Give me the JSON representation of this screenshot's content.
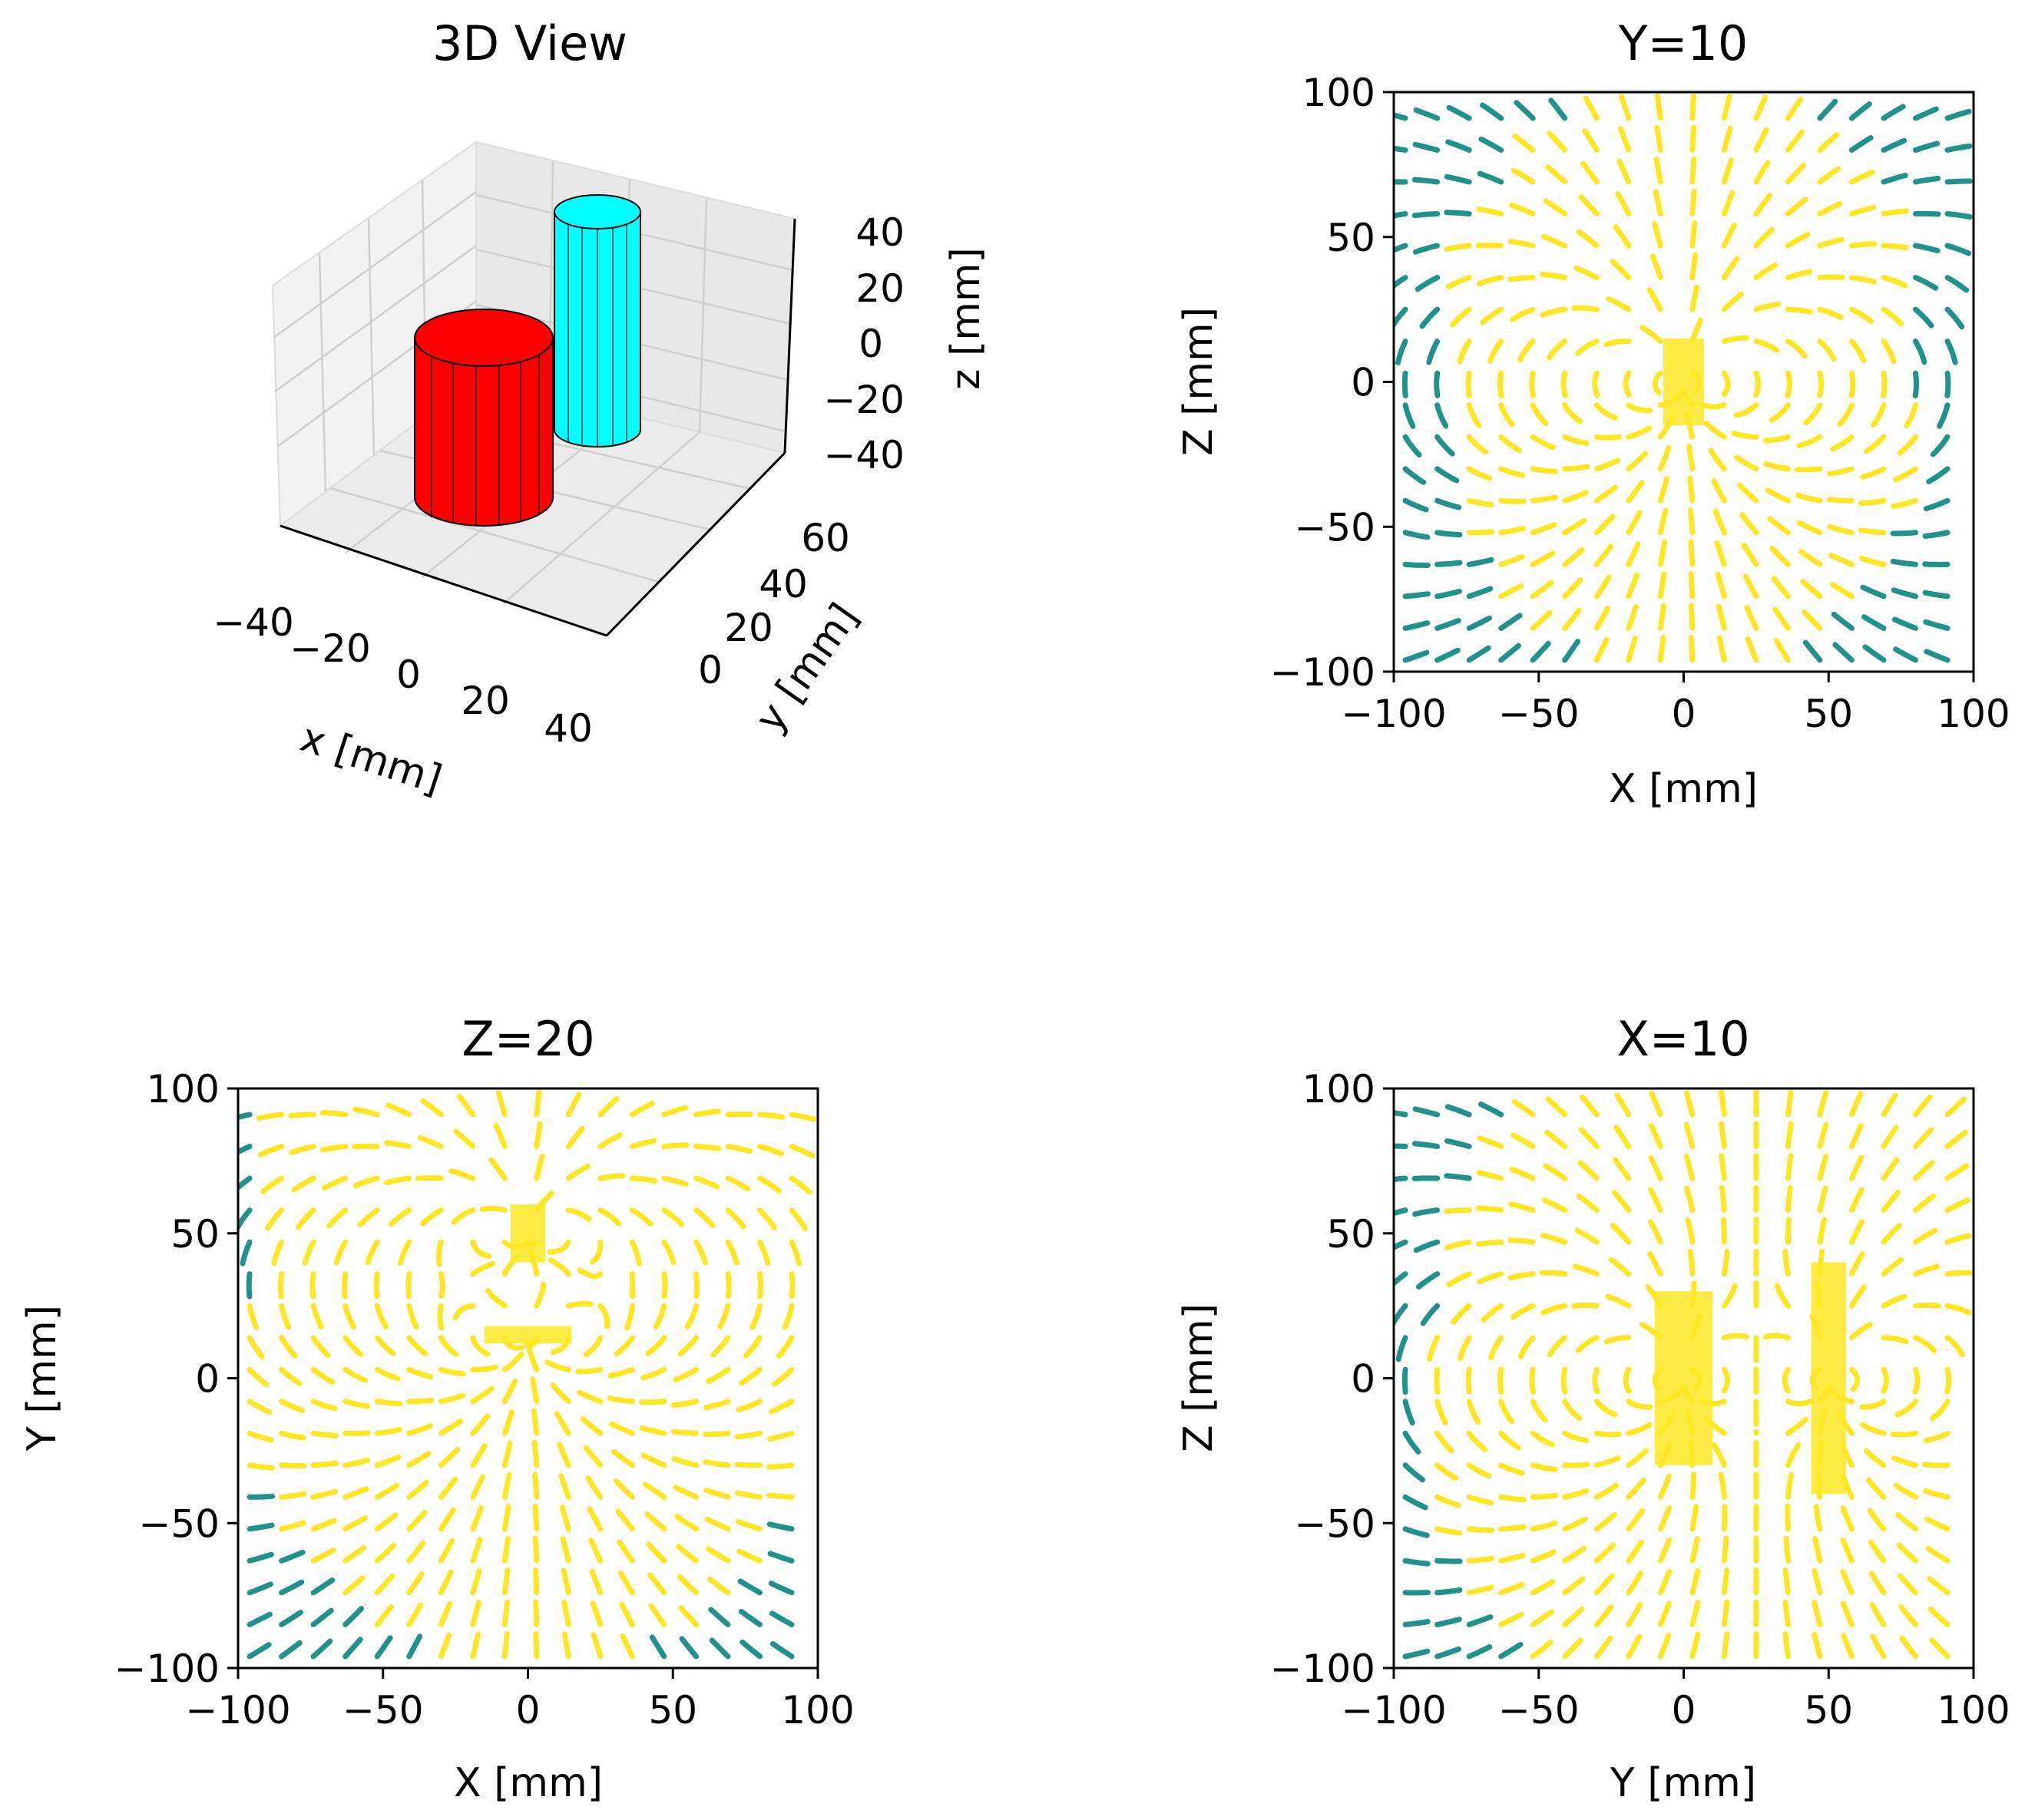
{
  "figure": {
    "colors": {
      "cylinder_a": "#ff0000",
      "cylinder_b": "#00ffff",
      "field_low": "#440154",
      "field_mid": "#21918c",
      "field_high": "#fde725"
    }
  },
  "chart_data": [
    {
      "type": "3d",
      "title": "3D View",
      "xlabel": "x [mm]",
      "ylabel": "y [mm]",
      "zlabel": "z [mm]",
      "xticks": [
        "−40",
        "−20",
        "0",
        "20",
        "40"
      ],
      "yticks": [
        "0",
        "20",
        "40",
        "60"
      ],
      "zticks": [
        "40",
        "20",
        "0",
        "−20",
        "−40"
      ],
      "objects": [
        {
          "shape": "cylinder",
          "color": "#ff0000",
          "center": [
            0,
            0,
            -10
          ],
          "radius": 10,
          "height": 30
        },
        {
          "shape": "cylinder",
          "color": "#00ffff",
          "center": [
            0,
            50,
            0
          ],
          "radius": 6,
          "height": 40
        }
      ]
    },
    {
      "type": "streamplot",
      "title": "Y=10",
      "xlabel": "X [mm]",
      "ylabel": "Z [mm]",
      "xlim": [
        -100,
        100
      ],
      "ylim": [
        -100,
        100
      ],
      "xticks": [
        "−100",
        "−50",
        "0",
        "50",
        "100"
      ],
      "yticks": [
        "100",
        "50",
        "0",
        "−50",
        "−100"
      ],
      "sources": [
        {
          "x": 0,
          "y": 0,
          "w": 14,
          "h": 30
        }
      ]
    },
    {
      "type": "streamplot",
      "title": "Z=20",
      "xlabel": "X [mm]",
      "ylabel": "Y [mm]",
      "xlim": [
        -100,
        100
      ],
      "ylim": [
        -100,
        100
      ],
      "xticks": [
        "−100",
        "−50",
        "0",
        "50",
        "100"
      ],
      "yticks": [
        "100",
        "50",
        "0",
        "−50",
        "−100"
      ],
      "sources": [
        {
          "x": 0,
          "y": 50,
          "w": 12,
          "h": 20
        },
        {
          "x": 0,
          "y": 15,
          "w": 30,
          "h": 6
        }
      ]
    },
    {
      "type": "streamplot",
      "title": "X=10",
      "xlabel": "Y [mm]",
      "ylabel": "Z [mm]",
      "xlim": [
        -100,
        100
      ],
      "ylim": [
        -100,
        100
      ],
      "xticks": [
        "−100",
        "−50",
        "0",
        "50",
        "100"
      ],
      "yticks": [
        "100",
        "50",
        "0",
        "−50",
        "−100"
      ],
      "sources": [
        {
          "x": 0,
          "y": 0,
          "w": 20,
          "h": 60
        },
        {
          "x": 50,
          "y": 0,
          "w": 12,
          "h": 80
        }
      ]
    }
  ]
}
